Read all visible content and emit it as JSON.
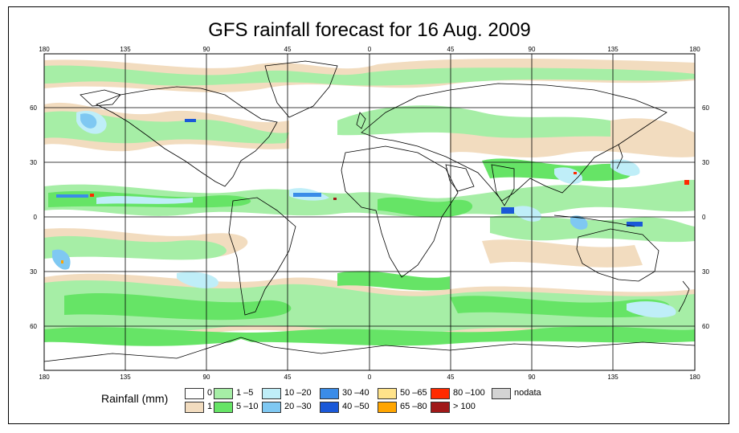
{
  "title": "GFS rainfall forecast for 16 Aug. 2009",
  "map": {
    "longitude_ticks": [
      "180",
      "135",
      "90",
      "45",
      "0",
      "45",
      "90",
      "135",
      "180"
    ],
    "latitude_ticks_left": [
      "60",
      "30",
      "0",
      "30",
      "60"
    ],
    "latitude_ticks_right": [
      "60",
      "30",
      "0",
      "30",
      "60"
    ]
  },
  "legend": {
    "title": "Rainfall (mm)",
    "items": [
      {
        "label": "0",
        "color": "#ffffff"
      },
      {
        "label": "1",
        "color": "#f2dcbf"
      },
      {
        "label": "1 –5",
        "color": "#a6eea6"
      },
      {
        "label": "5 –10",
        "color": "#66e466"
      },
      {
        "label": "10 –20",
        "color": "#bfeef8"
      },
      {
        "label": "20 –30",
        "color": "#7fc8f2"
      },
      {
        "label": "30 –40",
        "color": "#3a8ce8"
      },
      {
        "label": "40 –50",
        "color": "#1a58d8"
      },
      {
        "label": "50 –65",
        "color": "#ffe38a"
      },
      {
        "label": "65 –80",
        "color": "#ffa500"
      },
      {
        "label": "80 –100",
        "color": "#ff2a00"
      },
      {
        "label": "> 100",
        "color": "#a01818"
      },
      {
        "label": "nodata",
        "color": "#d3d3d3"
      }
    ]
  }
}
